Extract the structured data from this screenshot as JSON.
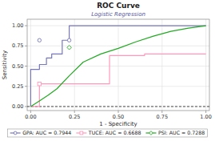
{
  "chart_data": {
    "type": "line",
    "title": "ROC Curve",
    "subtitle": "Logistic Regression",
    "xlabel": "1 - Specificity",
    "ylabel": "Sensitivity",
    "xlim": [
      -0.02,
      1.02
    ],
    "ylim": [
      -0.05,
      1.08
    ],
    "xticks": [
      {
        "value": 0,
        "label": "0.00"
      },
      0.25,
      {
        "value": 0.5,
        "label": "0.50"
      },
      0.75,
      {
        "value": 1,
        "label": "1.00"
      }
    ],
    "yticks": [
      {
        "value": 0,
        "label": "0.00"
      },
      0.25,
      {
        "value": 0.5,
        "label": "0.50"
      },
      0.75,
      {
        "value": 1,
        "label": "1.00"
      }
    ],
    "grid": true,
    "legend": "bottom",
    "reference_y": 0,
    "series": [
      {
        "name": "GPA: AUC = 0.7944",
        "color": "#7777bb",
        "marker": "circle",
        "line_style": "solid",
        "x": [
          0,
          0,
          0.05,
          0.05,
          0.09,
          0.09,
          0.12,
          0.12,
          0.18,
          0.18,
          0.22,
          0.22,
          1.0
        ],
        "values": [
          0,
          0.46,
          0.46,
          0.52,
          0.52,
          0.6,
          0.6,
          0.65,
          0.65,
          0.82,
          0.82,
          1.0,
          1.0
        ],
        "marker_x": [
          0.05,
          0.22
        ],
        "marker_values": [
          0.82,
          0.82
        ]
      },
      {
        "name": "TUCE: AUC = 0.6688",
        "color": "#ff99bb",
        "marker": "square",
        "line_style": "solid",
        "x": [
          0,
          0.05,
          0.05,
          0.45,
          0.45,
          0.65,
          0.65,
          1.0
        ],
        "values": [
          0,
          0,
          0.28,
          0.28,
          0.63,
          0.63,
          0.65,
          0.65
        ],
        "marker_x": [
          0.05
        ],
        "marker_values": [
          0.28
        ]
      },
      {
        "name": "PSI: AUC = 0.7288",
        "color": "#22aa22",
        "marker": "diamond",
        "line_style": "solid",
        "x": [
          0,
          0.05,
          0.1,
          0.15,
          0.22,
          0.3,
          0.4,
          0.5,
          0.6,
          0.7,
          0.8,
          0.9,
          1.0
        ],
        "values": [
          0,
          0.07,
          0.14,
          0.22,
          0.38,
          0.55,
          0.65,
          0.72,
          0.8,
          0.87,
          0.93,
          0.97,
          1.0
        ],
        "marker_x": [
          0.22
        ],
        "marker_values": [
          0.73
        ]
      }
    ]
  }
}
